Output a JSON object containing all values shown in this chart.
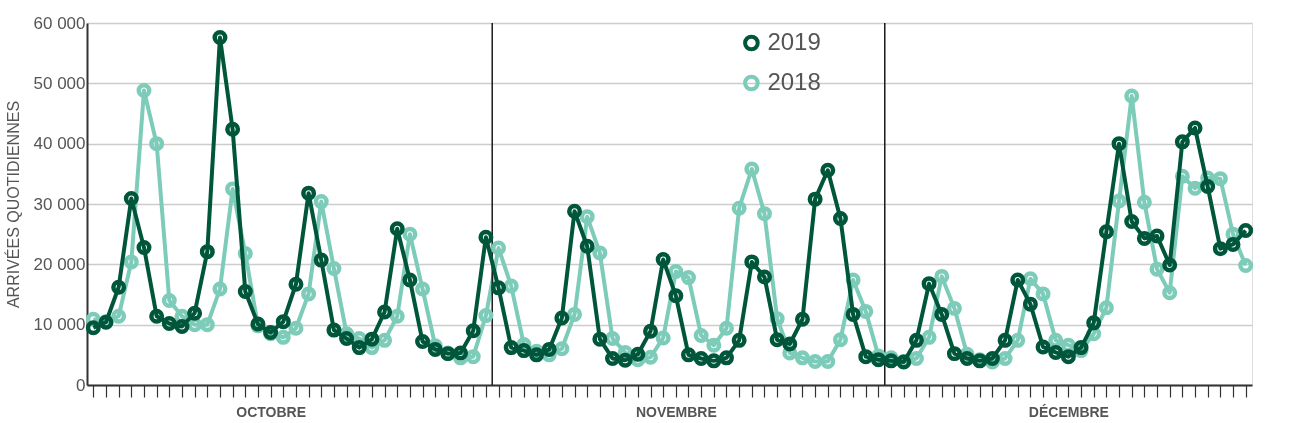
{
  "chart_data": {
    "type": "line",
    "ylabel": "ARRIVÉES QUOTIDIENNES",
    "categories": [
      null,
      null,
      null,
      null,
      null,
      null,
      null,
      null,
      null,
      null,
      null,
      null,
      null,
      null,
      "OCTOBRE",
      null,
      null,
      null,
      null,
      null,
      null,
      null,
      null,
      null,
      null,
      null,
      null,
      null,
      null,
      null,
      null,
      null,
      null,
      null,
      null,
      null,
      null,
      null,
      null,
      null,
      null,
      null,
      null,
      null,
      null,
      null,
      "NOVEMBRE",
      null,
      null,
      null,
      null,
      null,
      null,
      null,
      null,
      null,
      null,
      null,
      null,
      null,
      null,
      null,
      null,
      null,
      null,
      null,
      null,
      null,
      null,
      null,
      null,
      null,
      null,
      null,
      null,
      null,
      null,
      "DÉCEMBRE",
      null,
      null,
      null,
      null,
      null,
      null,
      null,
      null,
      null,
      null,
      null,
      null,
      null,
      null
    ],
    "series": [
      {
        "name": "2019",
        "color": "#00563a",
        "values": [
          9500,
          10400,
          16200,
          30900,
          22800,
          11400,
          10200,
          9700,
          11900,
          22100,
          57600,
          42400,
          15500,
          10100,
          8700,
          10500,
          16700,
          31800,
          20700,
          9100,
          7700,
          6200,
          7600,
          12100,
          25900,
          17400,
          7200,
          5900,
          5200,
          5300,
          9000,
          24500,
          16100,
          6200,
          5700,
          5000,
          5900,
          11100,
          28800,
          23000,
          7600,
          4400,
          4100,
          5100,
          8900,
          20800,
          14800,
          5000,
          4400,
          4000,
          4500,
          7400,
          20400,
          17900,
          7500,
          6800,
          10900,
          30800,
          35600,
          27600,
          11700,
          4700,
          4200,
          4000,
          3800,
          7400,
          16800,
          11700,
          5200,
          4400,
          4000,
          4400,
          7400,
          17400,
          13400,
          6300,
          5400,
          4700,
          6200,
          10300,
          25400,
          40000,
          27100,
          24300,
          24700,
          19900,
          40300,
          42600,
          32900,
          22600,
          23300,
          25600
        ]
      },
      {
        "name": "2018",
        "color": "#7dcbb9",
        "values": [
          10900,
          10500,
          11400,
          20400,
          48800,
          40000,
          14000,
          11400,
          10000,
          10000,
          15900,
          32500,
          21800,
          9800,
          8500,
          7900,
          9400,
          15100,
          30400,
          19300,
          8500,
          7700,
          6200,
          7400,
          11400,
          25000,
          15900,
          6500,
          5300,
          4500,
          4700,
          11500,
          22700,
          16400,
          6700,
          5600,
          5000,
          6000,
          11700,
          27900,
          21900,
          7700,
          5400,
          4200,
          4600,
          7800,
          18800,
          17800,
          8200,
          6600,
          9400,
          29300,
          35800,
          28400,
          11000,
          5300,
          4500,
          3900,
          3900,
          7500,
          17400,
          12200,
          4800,
          4500,
          3900,
          4400,
          7900,
          18000,
          12700,
          5100,
          4200,
          3800,
          4400,
          7400,
          17600,
          15100,
          7400,
          6600,
          5700,
          8500,
          12800,
          30500,
          47900,
          30300,
          19200,
          15300,
          34600,
          32600,
          34300,
          34200,
          25000,
          19800
        ]
      }
    ],
    "ylim": [
      0,
      60000
    ],
    "yticks": [
      0,
      {
        "value": 10000,
        "label": "10 000"
      },
      {
        "value": 20000,
        "label": "20 000"
      },
      {
        "value": 30000,
        "label": "30 000"
      },
      {
        "value": 40000,
        "label": "40 000"
      },
      {
        "value": 50000,
        "label": "50 000"
      },
      {
        "value": 60000,
        "label": "60 000"
      }
    ],
    "grid": "y",
    "legend": "top",
    "marker": "circle",
    "line_style": "solid"
  }
}
